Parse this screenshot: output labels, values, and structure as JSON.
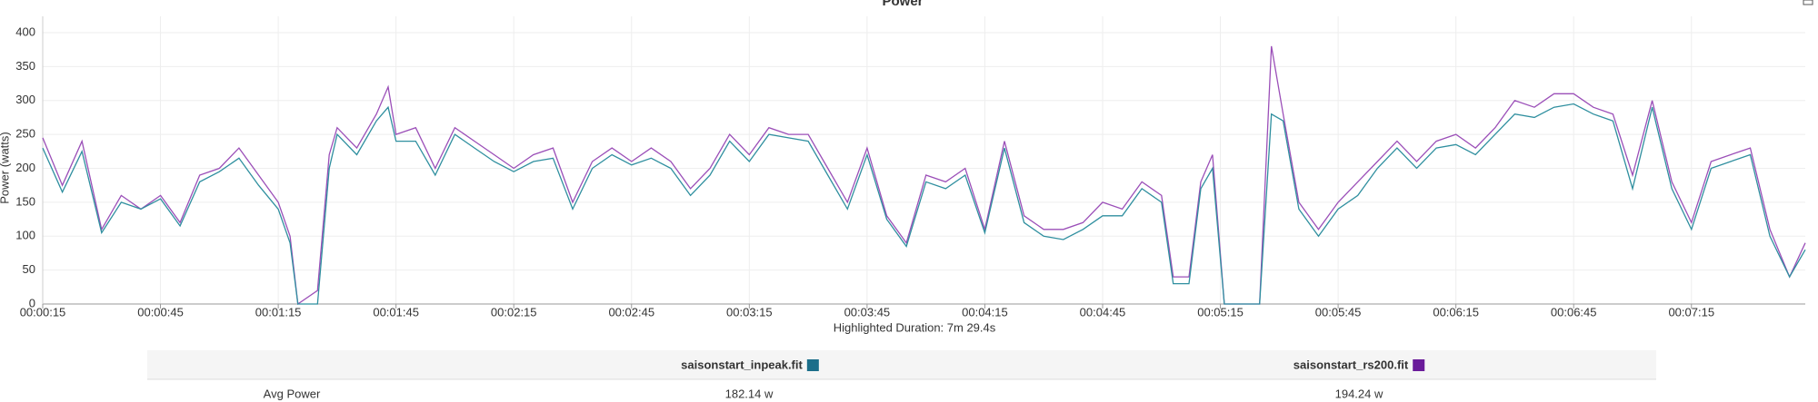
{
  "chart_data": {
    "type": "line",
    "title": "Power",
    "ylabel": "Power (watts)",
    "xlabel": "Highlighted Duration: 7m 29.4s",
    "x": [
      15,
      20,
      25,
      30,
      35,
      40,
      45,
      50,
      55,
      60,
      65,
      70,
      75,
      78,
      80,
      85,
      88,
      90,
      95,
      100,
      103,
      105,
      110,
      115,
      120,
      125,
      130,
      135,
      140,
      145,
      150,
      155,
      160,
      165,
      170,
      175,
      180,
      185,
      190,
      195,
      200,
      205,
      210,
      215,
      220,
      225,
      230,
      235,
      240,
      245,
      250,
      255,
      260,
      265,
      270,
      275,
      280,
      285,
      290,
      295,
      300,
      303,
      307,
      310,
      313,
      316,
      325,
      328,
      331,
      335,
      340,
      345,
      350,
      355,
      360,
      365,
      370,
      375,
      380,
      385,
      390,
      395,
      400,
      405,
      410,
      415,
      420,
      425,
      430,
      435,
      440,
      445,
      450,
      455,
      460,
      464
    ],
    "series": [
      {
        "name": "saisonstart_inpeak.fit",
        "color": "#2f8f9f",
        "legend_color": "#1b6e8a",
        "values": [
          230,
          165,
          225,
          105,
          150,
          140,
          155,
          115,
          180,
          195,
          215,
          175,
          140,
          90,
          0,
          0,
          200,
          250,
          220,
          270,
          290,
          240,
          240,
          190,
          250,
          230,
          210,
          195,
          210,
          215,
          140,
          200,
          220,
          205,
          215,
          200,
          160,
          190,
          240,
          210,
          250,
          245,
          240,
          190,
          140,
          220,
          125,
          85,
          180,
          170,
          190,
          105,
          230,
          120,
          100,
          95,
          110,
          130,
          130,
          170,
          150,
          30,
          30,
          170,
          200,
          0,
          0,
          280,
          270,
          140,
          100,
          140,
          160,
          200,
          230,
          200,
          230,
          235,
          220,
          250,
          280,
          275,
          290,
          295,
          280,
          270,
          170,
          290,
          170,
          110,
          200,
          210,
          220,
          100,
          40,
          80
        ]
      },
      {
        "name": "saisonstart_rs200.fit",
        "color": "#9b4fb8",
        "legend_color": "#6a1b9a",
        "values": [
          245,
          175,
          240,
          110,
          160,
          140,
          160,
          120,
          190,
          200,
          230,
          190,
          150,
          100,
          0,
          20,
          220,
          260,
          230,
          280,
          320,
          250,
          260,
          200,
          260,
          240,
          220,
          200,
          220,
          230,
          150,
          210,
          230,
          210,
          230,
          210,
          170,
          200,
          250,
          220,
          260,
          250,
          250,
          200,
          150,
          230,
          130,
          90,
          190,
          180,
          200,
          110,
          240,
          130,
          110,
          110,
          120,
          150,
          140,
          180,
          160,
          40,
          40,
          180,
          220,
          0,
          0,
          380,
          280,
          150,
          110,
          150,
          180,
          210,
          240,
          210,
          240,
          250,
          230,
          260,
          300,
          290,
          310,
          310,
          290,
          280,
          190,
          300,
          180,
          120,
          210,
          220,
          230,
          110,
          40,
          90
        ]
      }
    ],
    "xlim": [
      15,
      464
    ],
    "ylim": [
      0,
      400
    ],
    "yticks": [
      0,
      50,
      100,
      150,
      200,
      250,
      300,
      350,
      400
    ],
    "xticks": [
      {
        "value": 15,
        "label": "00:00:15"
      },
      {
        "value": 45,
        "label": "00:00:45"
      },
      {
        "value": 75,
        "label": "00:01:15"
      },
      {
        "value": 105,
        "label": "00:01:45"
      },
      {
        "value": 135,
        "label": "00:02:15"
      },
      {
        "value": 165,
        "label": "00:02:45"
      },
      {
        "value": 195,
        "label": "00:03:15"
      },
      {
        "value": 225,
        "label": "00:03:45"
      },
      {
        "value": 255,
        "label": "00:04:15"
      },
      {
        "value": 285,
        "label": "00:04:45"
      },
      {
        "value": 315,
        "label": "00:05:15"
      },
      {
        "value": 345,
        "label": "00:05:45"
      },
      {
        "value": 375,
        "label": "00:06:15"
      },
      {
        "value": 405,
        "label": "00:06:45"
      },
      {
        "value": 435,
        "label": "00:07:15"
      }
    ],
    "grid": true
  },
  "table": {
    "rows": [
      [
        "Avg Power",
        "182.14 w",
        "194.24 w"
      ]
    ]
  }
}
